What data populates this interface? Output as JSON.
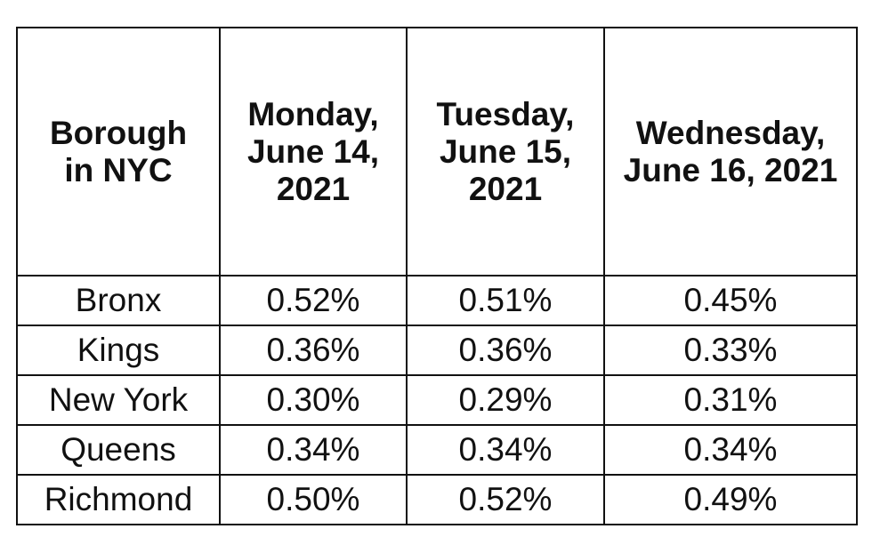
{
  "table": {
    "header": [
      [
        "Borough",
        "in NYC"
      ],
      [
        "Monday,",
        "June 14,",
        "2021"
      ],
      [
        "Tuesday,",
        "June 15,",
        "2021"
      ],
      [
        "Wednesday,",
        "June 16, 2021"
      ]
    ],
    "rows": [
      [
        "Bronx",
        "0.52%",
        "0.51%",
        "0.45%"
      ],
      [
        "Kings",
        "0.36%",
        "0.36%",
        "0.33%"
      ],
      [
        "New York",
        "0.30%",
        "0.29%",
        "0.31%"
      ],
      [
        "Queens",
        "0.34%",
        "0.34%",
        "0.34%"
      ],
      [
        "Richmond",
        "0.50%",
        "0.52%",
        "0.49%"
      ]
    ]
  }
}
